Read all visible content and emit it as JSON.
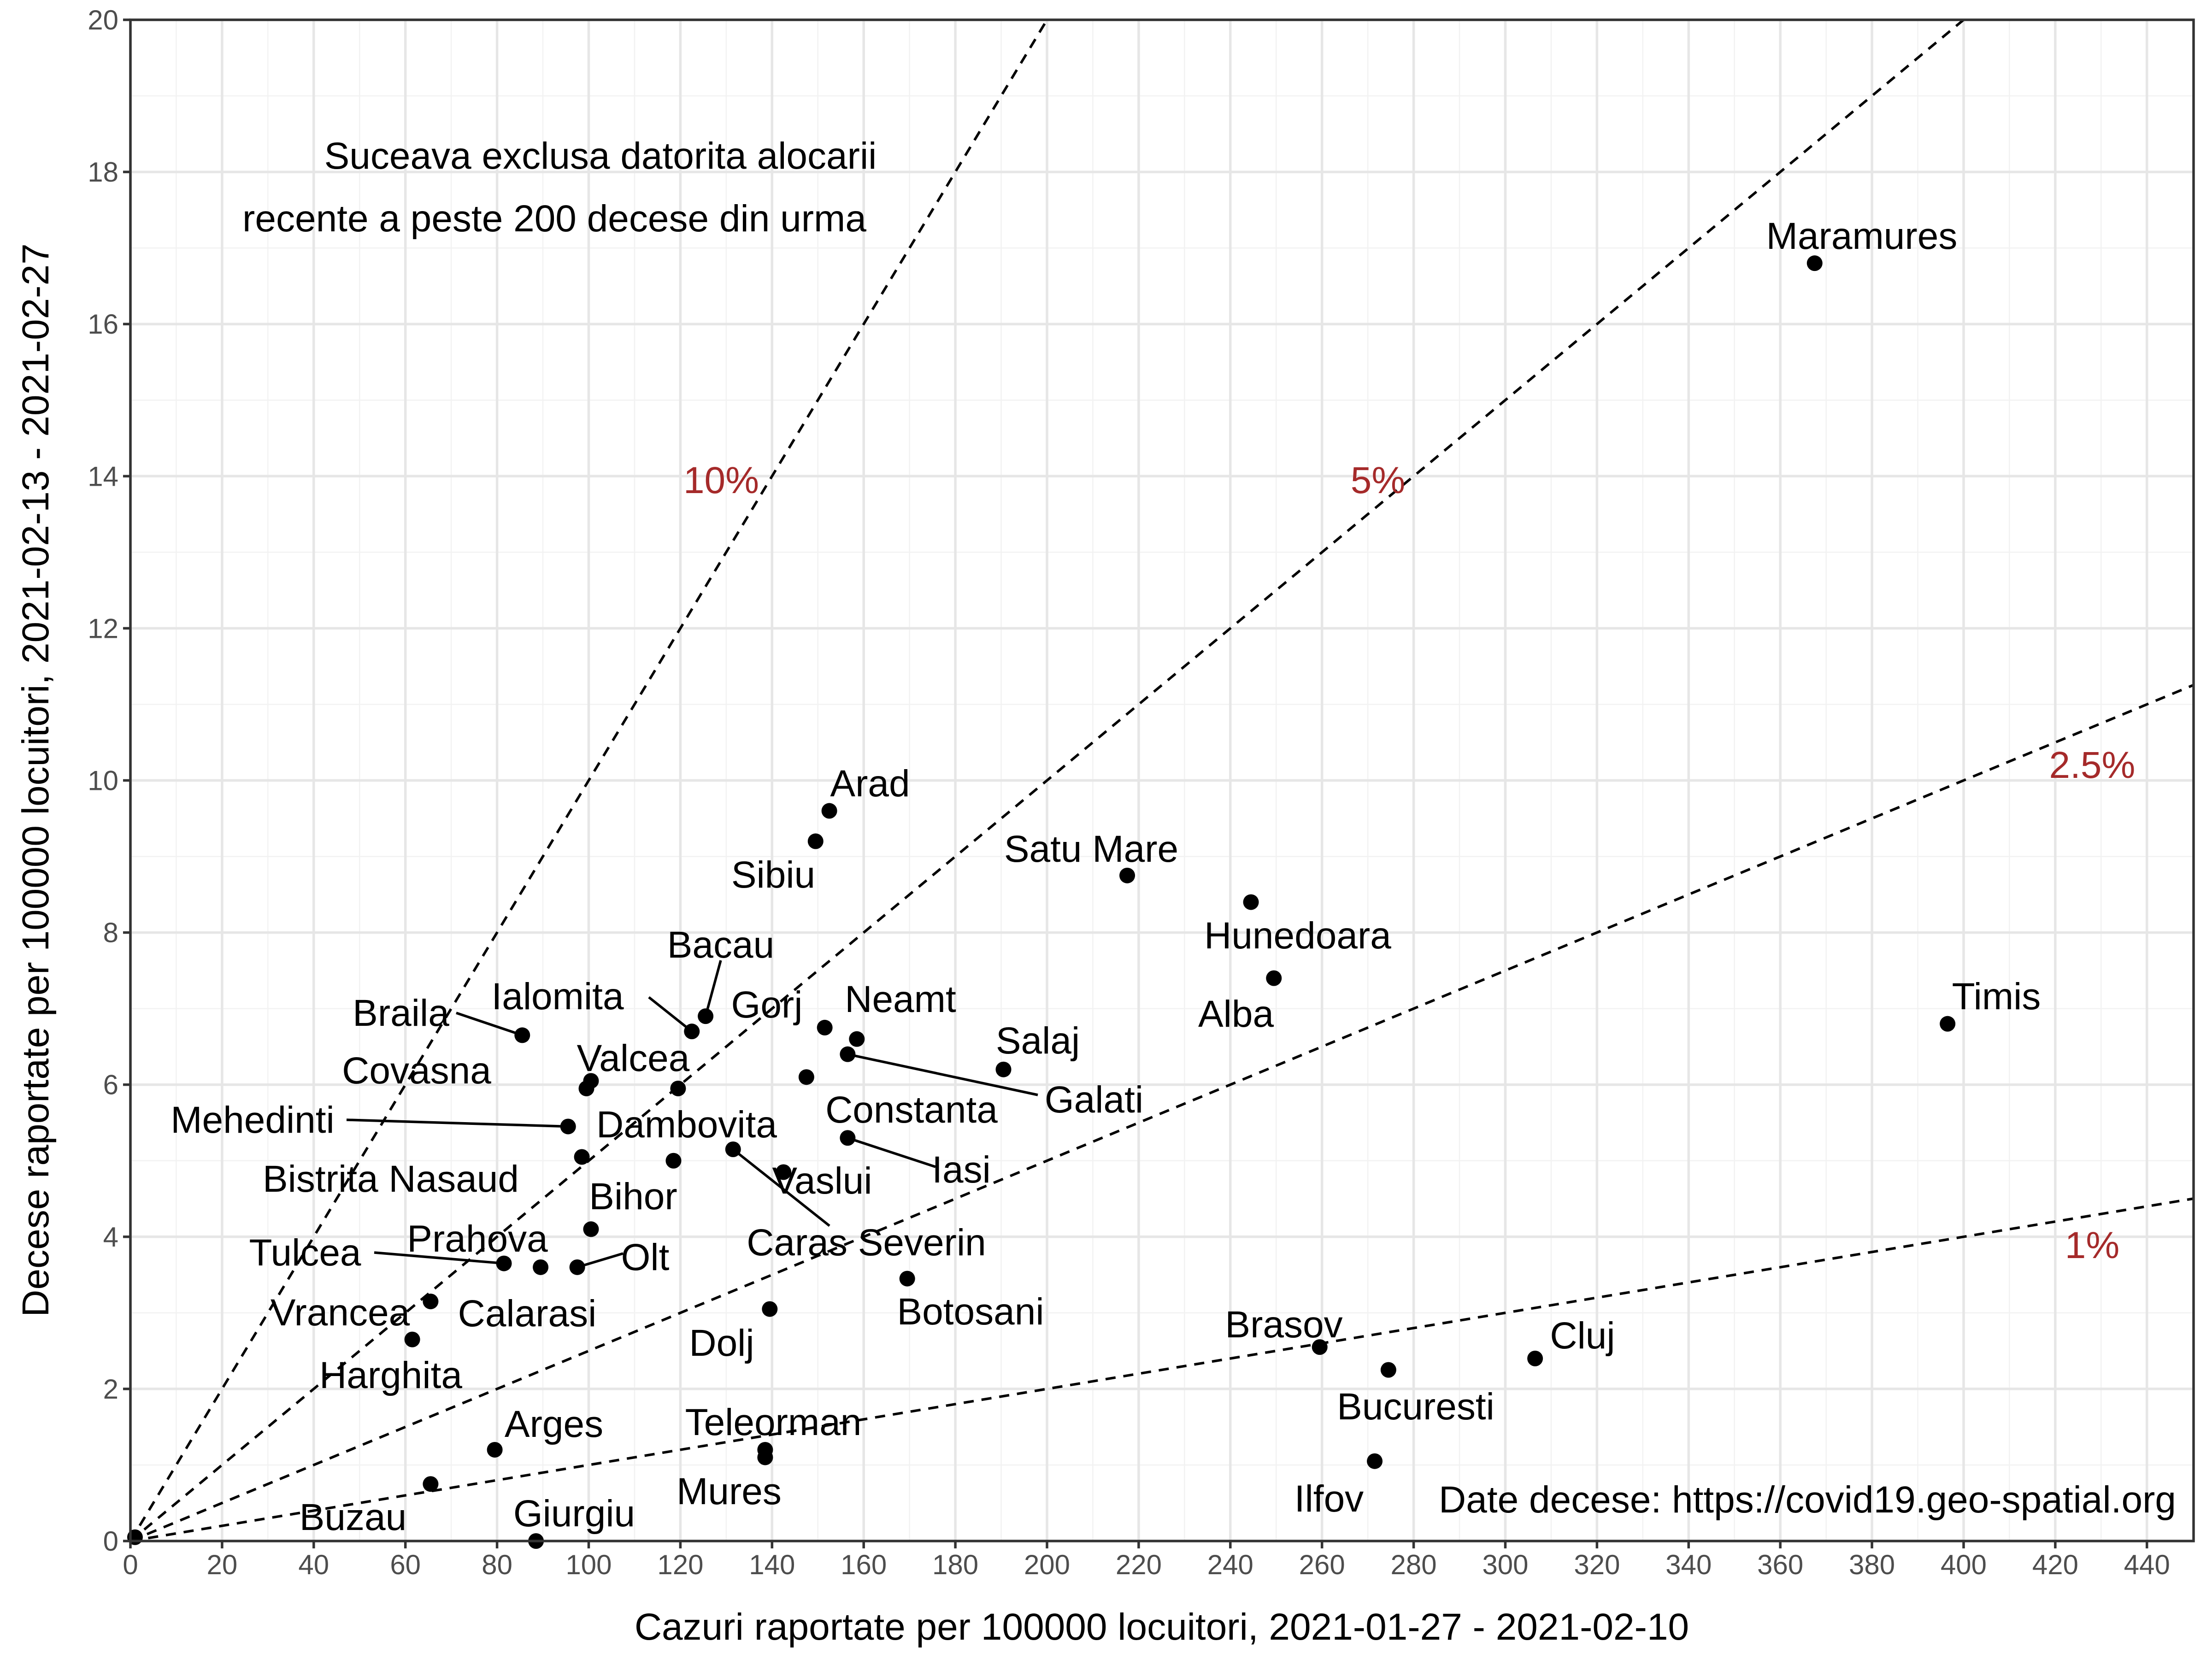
{
  "chart_data": {
    "type": "scatter",
    "xlabel": "Cazuri raportate per 100000 locuitori, 2021-01-27 - 2021-02-10",
    "ylabel": "Decese raportate per 100000 locuitori, 2021-02-13 - 2021-02-27",
    "xlim": [
      0,
      450
    ],
    "ylim": [
      0,
      20
    ],
    "x_ticks": [
      0,
      20,
      40,
      60,
      80,
      100,
      120,
      140,
      160,
      180,
      200,
      220,
      240,
      260,
      280,
      300,
      320,
      340,
      360,
      380,
      400,
      420,
      440
    ],
    "y_ticks": [
      0,
      2,
      4,
      6,
      8,
      10,
      12,
      14,
      16,
      18,
      20
    ],
    "grid": true,
    "annotations": {
      "note_line1": "Suceava exclusa datorita alocarii",
      "note_line2": "recente a peste 200 decese din urma",
      "source": "Date decese: https://covid19.geo-spatial.org"
    },
    "reference_lines": [
      {
        "label": "10%",
        "slope": 0.1
      },
      {
        "label": "5%",
        "slope": 0.05
      },
      {
        "label": "2.5%",
        "slope": 0.025
      },
      {
        "label": "1%",
        "slope": 0.01
      }
    ],
    "points": [
      {
        "label": "Maramures",
        "x": 367.5,
        "y": 16.8
      },
      {
        "label": "Timis",
        "x": 396.5,
        "y": 6.8
      },
      {
        "label": "Arad",
        "x": 152.5,
        "y": 9.6
      },
      {
        "label": "Sibiu",
        "x": 149.5,
        "y": 9.2
      },
      {
        "label": "Satu Mare",
        "x": 217.5,
        "y": 8.75
      },
      {
        "label": "Hunedoara",
        "x": 244.5,
        "y": 8.4
      },
      {
        "label": "Alba",
        "x": 249.5,
        "y": 7.4
      },
      {
        "label": "Bacau",
        "x": 125.5,
        "y": 6.9
      },
      {
        "label": "Ialomita",
        "x": 122.5,
        "y": 6.7
      },
      {
        "label": "Gorj",
        "x": 151.5,
        "y": 6.75
      },
      {
        "label": "Neamt",
        "x": 158.5,
        "y": 6.6
      },
      {
        "label": "Galati",
        "x": 156.5,
        "y": 6.4
      },
      {
        "label": "Salaj",
        "x": 190.5,
        "y": 6.2
      },
      {
        "label": "Braila",
        "x": 85.5,
        "y": 6.65
      },
      {
        "label": "Covasna",
        "x": 99.5,
        "y": 5.95
      },
      {
        "label": "Valcea",
        "x": 100.5,
        "y": 6.05
      },
      {
        "label": "Dambovita",
        "x": 119.5,
        "y": 5.95
      },
      {
        "label": "Constanta",
        "x": 147.5,
        "y": 6.1
      },
      {
        "label": "Mehedinti",
        "x": 95.5,
        "y": 5.45
      },
      {
        "label": "Iasi",
        "x": 156.5,
        "y": 5.3
      },
      {
        "label": "Bistrita Nasaud",
        "x": 98.5,
        "y": 5.05
      },
      {
        "label": "Bihor",
        "x": 118.5,
        "y": 5.0
      },
      {
        "label": "Caras Severin",
        "x": 131.5,
        "y": 5.15
      },
      {
        "label": "Vaslui",
        "x": 142.5,
        "y": 4.85
      },
      {
        "label": "Prahova",
        "x": 100.5,
        "y": 4.1
      },
      {
        "label": "Olt",
        "x": 97.5,
        "y": 3.6
      },
      {
        "label": "Tulcea",
        "x": 81.5,
        "y": 3.65
      },
      {
        "label": "Calarasi",
        "x": 89.5,
        "y": 3.6
      },
      {
        "label": "Vrancea",
        "x": 65.5,
        "y": 3.15
      },
      {
        "label": "Harghita",
        "x": 61.5,
        "y": 2.65
      },
      {
        "label": "Botosani",
        "x": 169.5,
        "y": 3.45
      },
      {
        "label": "Dolj",
        "x": 139.5,
        "y": 3.05
      },
      {
        "label": "Brasov",
        "x": 259.5,
        "y": 2.55
      },
      {
        "label": "Bucuresti",
        "x": 274.5,
        "y": 2.25
      },
      {
        "label": "Cluj",
        "x": 306.5,
        "y": 2.4
      },
      {
        "label": "Arges",
        "x": 79.5,
        "y": 1.2
      },
      {
        "label": "Teleorman",
        "x": 138.5,
        "y": 1.2
      },
      {
        "label": "Mures",
        "x": 138.5,
        "y": 1.1
      },
      {
        "label": "Ilfov",
        "x": 271.5,
        "y": 1.05
      },
      {
        "label": "Buzau",
        "x": 65.5,
        "y": 0.75
      },
      {
        "label": "Giurgiu",
        "x": 88.5,
        "y": 0.0
      },
      {
        "label": "",
        "x": 1.0,
        "y": 0.05
      }
    ]
  }
}
